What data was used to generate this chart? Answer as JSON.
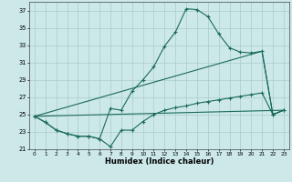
{
  "xlabel": "Humidex (Indice chaleur)",
  "bg_color": "#cce8e8",
  "grid_color": "#aacccc",
  "line_color": "#1a6b5a",
  "xlim": [
    -0.5,
    23.5
  ],
  "ylim": [
    21,
    38
  ],
  "yticks": [
    21,
    23,
    25,
    27,
    29,
    31,
    33,
    35,
    37
  ],
  "xticks": [
    0,
    1,
    2,
    3,
    4,
    5,
    6,
    7,
    8,
    9,
    10,
    11,
    12,
    13,
    14,
    15,
    16,
    17,
    18,
    19,
    20,
    21,
    22,
    23
  ],
  "line1_x": [
    0,
    1,
    2,
    3,
    4,
    5,
    6,
    7,
    8,
    9,
    10,
    11,
    12,
    13,
    14,
    15,
    16,
    17,
    18,
    19,
    20,
    21,
    22,
    23
  ],
  "line1_y": [
    24.8,
    24.1,
    23.2,
    22.8,
    22.5,
    22.5,
    22.2,
    21.3,
    23.2,
    23.2,
    24.2,
    25.0,
    25.5,
    25.8,
    26.0,
    26.3,
    26.5,
    26.7,
    26.9,
    27.1,
    27.3,
    27.5,
    25.0,
    25.5
  ],
  "line2_x": [
    0,
    1,
    2,
    3,
    4,
    5,
    6,
    7,
    8,
    9,
    10,
    11,
    12,
    13,
    14,
    15,
    16,
    17,
    18,
    19,
    20,
    21,
    22,
    23
  ],
  "line2_y": [
    24.8,
    24.1,
    23.2,
    22.8,
    22.5,
    22.5,
    22.2,
    25.7,
    25.5,
    27.7,
    29.0,
    30.5,
    32.9,
    34.5,
    37.2,
    37.1,
    36.3,
    34.3,
    32.7,
    32.2,
    32.1,
    32.3,
    25.0,
    25.5
  ],
  "line3_x": [
    0,
    21,
    22,
    23
  ],
  "line3_y": [
    24.8,
    32.3,
    25.0,
    25.5
  ],
  "line4_x": [
    0,
    23
  ],
  "line4_y": [
    24.8,
    25.5
  ]
}
